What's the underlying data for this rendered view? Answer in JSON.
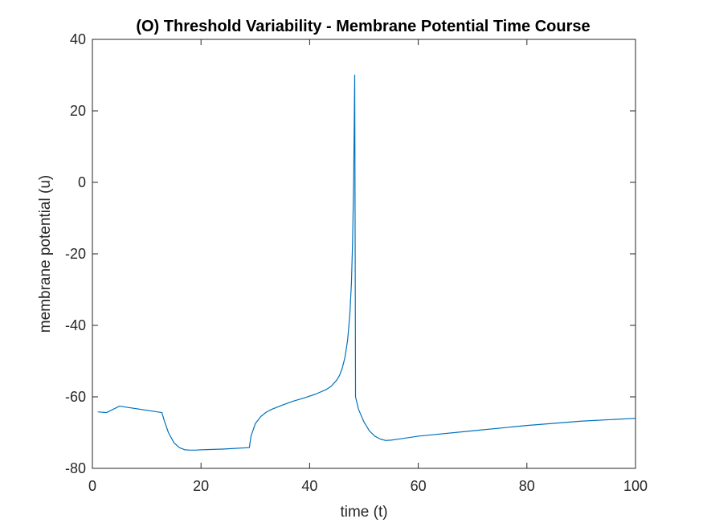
{
  "chart_data": {
    "type": "line",
    "title": "(O) Threshold Variability - Membrane Potential Time Course",
    "xlabel": "time (t)",
    "ylabel": "membrane potential (u)",
    "xlim": [
      0,
      100
    ],
    "ylim": [
      -80,
      40
    ],
    "xticks": [
      0,
      20,
      40,
      60,
      80,
      100
    ],
    "yticks": [
      -80,
      -60,
      -40,
      -20,
      0,
      20,
      40
    ],
    "grid": false,
    "line_color": "#0072BD",
    "series": [
      {
        "x": [
          1,
          2.6,
          5,
          12.8,
          13.2,
          14,
          15,
          16,
          17,
          18,
          19,
          20,
          24,
          28.9,
          29.2,
          30,
          31,
          32,
          33,
          35,
          37,
          39,
          41,
          43,
          44,
          45,
          45.5,
          46,
          46.5,
          47,
          47.4,
          47.7,
          47.9,
          48.1,
          48.3,
          48.45,
          49,
          50,
          51,
          52,
          53,
          54,
          55,
          56,
          60,
          70,
          80,
          90,
          100
        ],
        "y": [
          -64.2,
          -64.4,
          -62.6,
          -64.4,
          -66.5,
          -70,
          -72.8,
          -74.2,
          -74.8,
          -74.9,
          -74.9,
          -74.8,
          -74.6,
          -74.2,
          -71,
          -67.5,
          -65.5,
          -64.3,
          -63.5,
          -62.3,
          -61.2,
          -60.3,
          -59.3,
          -58,
          -57,
          -55.3,
          -54,
          -52,
          -49,
          -44,
          -37,
          -28,
          -17,
          0,
          30,
          -60,
          -63.5,
          -67,
          -69.5,
          -71,
          -71.8,
          -72.2,
          -72.1,
          -71.9,
          -71,
          -69.5,
          -68,
          -66.8,
          -66
        ]
      }
    ]
  }
}
